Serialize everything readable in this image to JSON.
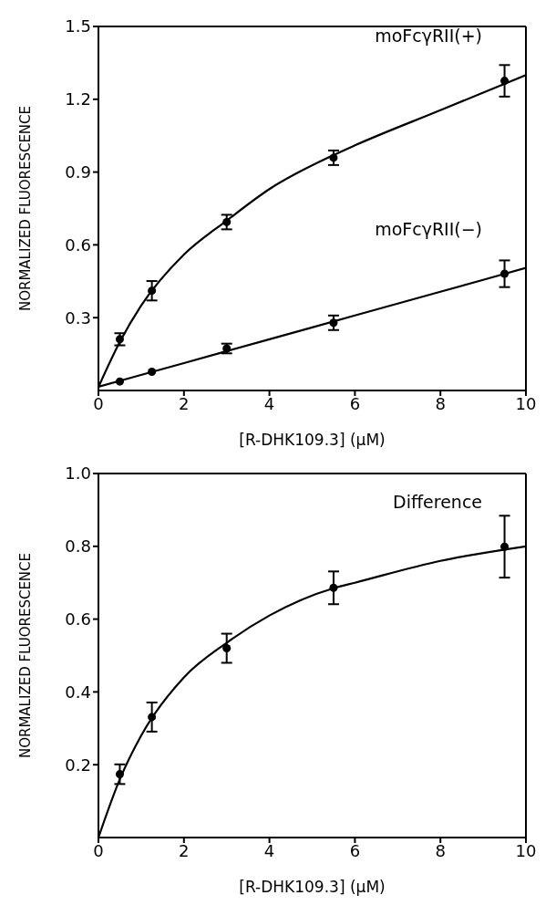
{
  "chart_data": [
    {
      "type": "scatter",
      "xlabel": "[R-DHK109.3] (μM)",
      "ylabel": "NORMALIZED FLUORESCENCE",
      "xlim": [
        0,
        10
      ],
      "xticks": [
        0,
        2,
        4,
        6,
        8,
        10
      ],
      "ylim": [
        0,
        1.5
      ],
      "yticks": [
        0.3,
        0.6,
        0.9,
        1.2,
        1.5
      ],
      "series": [
        {
          "name": "moFcγRII(+)",
          "color": "#000000",
          "marker": "circle",
          "x": [
            0.5,
            1.25,
            3,
            5.5,
            9.5
          ],
          "values": [
            0.211,
            0.411,
            0.694,
            0.959,
            1.276
          ],
          "errors": [
            0.025,
            0.04,
            0.03,
            0.03,
            0.065
          ]
        },
        {
          "name": "moFcγRII(−)",
          "color": "#000000",
          "marker": "circle",
          "x": [
            0.5,
            1.25,
            3,
            5.5,
            9.5
          ],
          "values": [
            0.037,
            0.077,
            0.173,
            0.279,
            0.481
          ],
          "errors": [
            null,
            null,
            0.02,
            0.03,
            0.055
          ]
        },
        {
          "type": "line",
          "color": "#000000",
          "marker": "none",
          "x": [
            0,
            0.5,
            1,
            2,
            3,
            4,
            5.5,
            6,
            8,
            10
          ],
          "values": [
            0.014,
            0.2,
            0.35,
            0.56,
            0.7,
            0.83,
            0.97,
            1.01,
            1.155,
            1.3
          ]
        },
        {
          "type": "line",
          "color": "#000000",
          "marker": "none",
          "x": [
            0,
            2,
            4,
            6,
            8,
            10
          ],
          "values": [
            0.015,
            0.113,
            0.211,
            0.309,
            0.407,
            0.505
          ]
        }
      ]
    },
    {
      "type": "scatter",
      "xlabel": "[R-DHK109.3] (μM)",
      "ylabel": "NORMALIZED FLUORESCENCE",
      "xlim": [
        0,
        10
      ],
      "xticks": [
        0,
        2,
        4,
        6,
        8,
        10
      ],
      "ylim": [
        0,
        1.0
      ],
      "yticks": [
        0.2,
        0.4,
        0.6,
        0.8,
        {
          "value": 1.0,
          "label": "1.0"
        }
      ],
      "series": [
        {
          "name": "Difference",
          "color": "#000000",
          "marker": "circle",
          "x": [
            0.5,
            1.25,
            3,
            5.5,
            9.5
          ],
          "values": [
            0.174,
            0.331,
            0.52,
            0.686,
            0.799
          ],
          "errors": [
            0.027,
            0.04,
            0.04,
            0.045,
            0.085
          ]
        },
        {
          "type": "line",
          "color": "#000000",
          "marker": "none",
          "x": [
            0,
            0.5,
            1,
            2,
            3,
            4,
            5.5,
            6,
            8,
            10
          ],
          "values": [
            0,
            0.16,
            0.28,
            0.44,
            0.535,
            0.61,
            0.685,
            0.7,
            0.76,
            0.8
          ]
        }
      ]
    }
  ]
}
